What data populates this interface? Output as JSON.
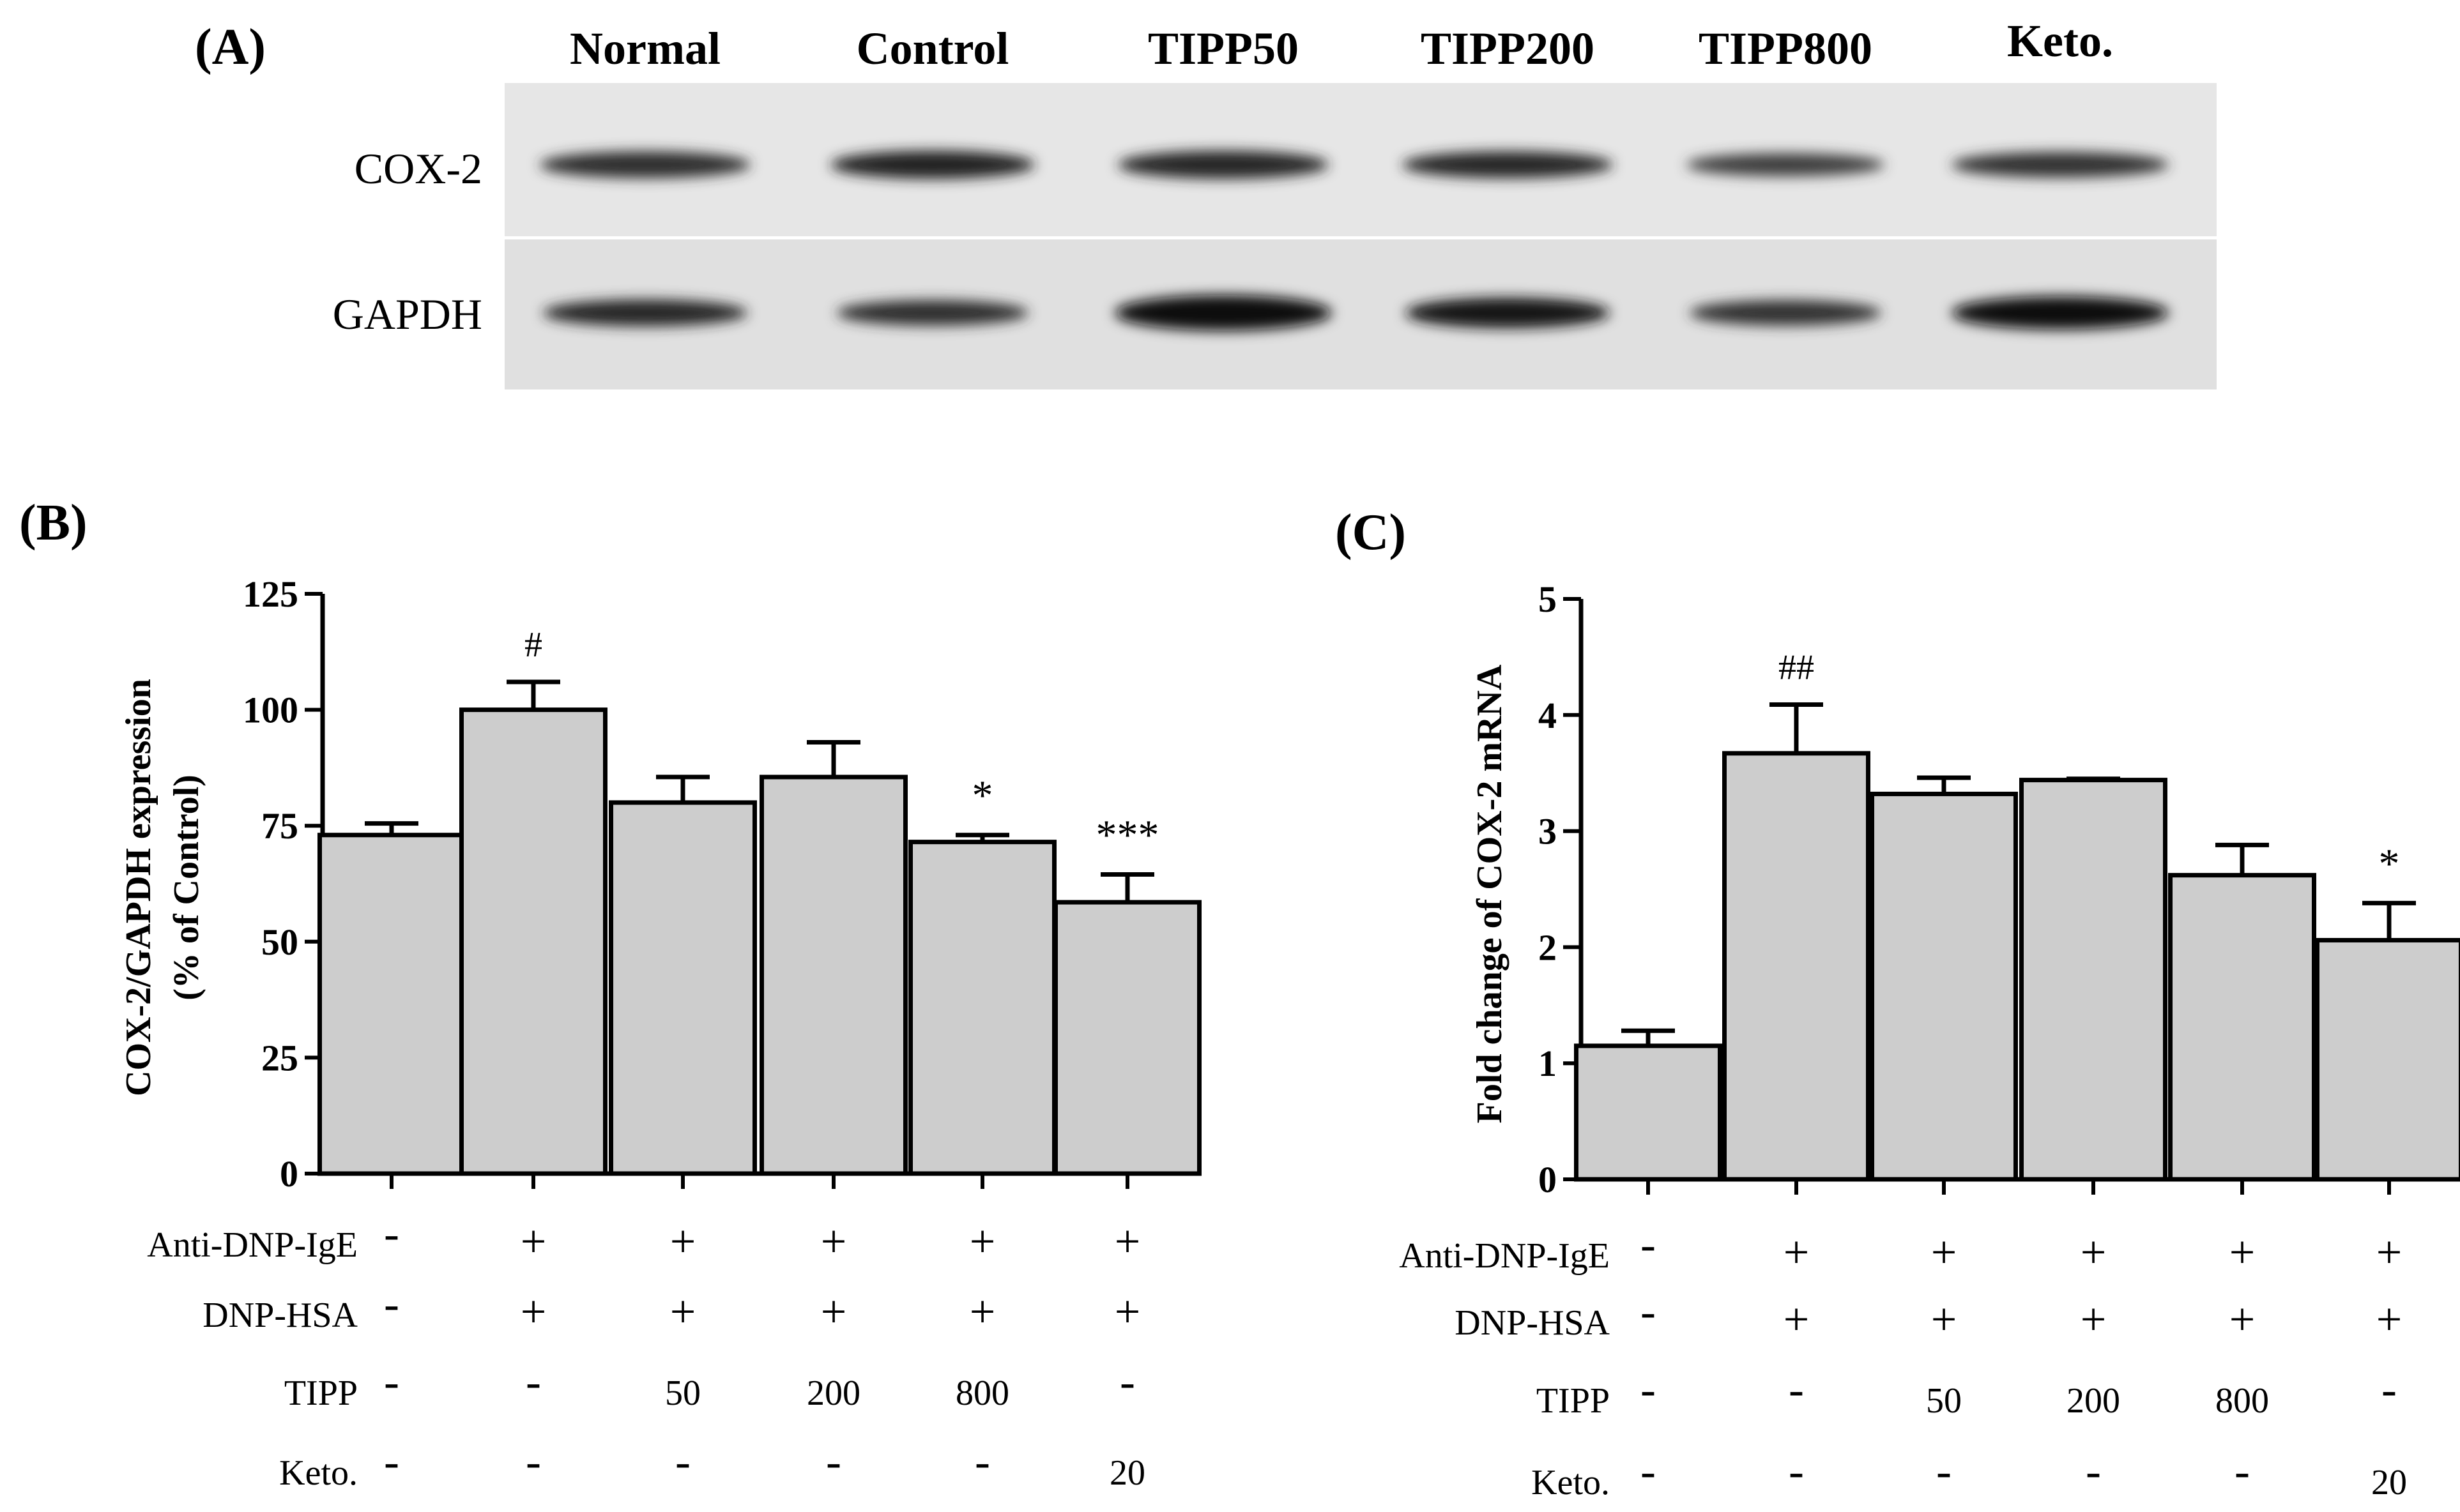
{
  "panel_a": {
    "label": "(A)",
    "lanes": [
      "Normal",
      "Control",
      "TIPP50",
      "TIPP200",
      "TIPP800",
      "Keto."
    ],
    "rows": [
      "COX-2",
      "GAPDH"
    ]
  },
  "conditions": {
    "rows": [
      {
        "label": "Anti-DNP-IgE",
        "values": [
          "-",
          "+",
          "+",
          "+",
          "+",
          "+"
        ]
      },
      {
        "label": "DNP-HSA",
        "values": [
          "-",
          "+",
          "+",
          "+",
          "+",
          "+"
        ]
      },
      {
        "label": "TIPP",
        "values": [
          "-",
          "-",
          "50",
          "200",
          "800",
          "-"
        ]
      },
      {
        "label": "Keto.",
        "values": [
          "-",
          "-",
          "-",
          "-",
          "-",
          "20"
        ]
      }
    ]
  },
  "chart_data": [
    {
      "panel": "(B)",
      "type": "bar",
      "ylabel": "COX-2/GAPDH expression",
      "ylabel2": "(% of Control)",
      "ylim": [
        0,
        125
      ],
      "yticks": [
        0,
        25,
        50,
        75,
        100,
        125
      ],
      "values": [
        73,
        100,
        80,
        85.5,
        71.5,
        58.5
      ],
      "errors": [
        2.5,
        6,
        5.5,
        7.5,
        1.5,
        6
      ],
      "annotations": [
        "",
        "#",
        "",
        "",
        "*",
        "***"
      ]
    },
    {
      "panel": "(C)",
      "type": "bar",
      "ylabel": "Fold change of COX-2 mRNA",
      "ylim": [
        0,
        5
      ],
      "yticks": [
        0,
        1,
        2,
        3,
        4,
        5
      ],
      "values": [
        1.15,
        3.67,
        3.32,
        3.44,
        2.62,
        2.06
      ],
      "errors": [
        0.13,
        0.42,
        0.14,
        0.01,
        0.26,
        0.32
      ],
      "annotations": [
        "",
        "##",
        "",
        "",
        "",
        "*"
      ]
    }
  ],
  "colors": {
    "bar_fill": "#cdcdcd",
    "bar_stroke": "#000000"
  }
}
